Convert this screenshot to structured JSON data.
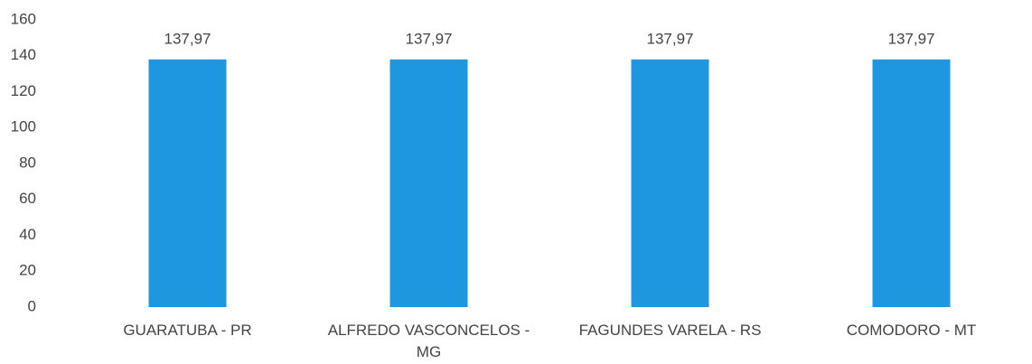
{
  "chart_data": {
    "type": "bar",
    "categories": [
      "GUARATUBA - PR",
      "ALFREDO VASCONCELOS - MG",
      "FAGUNDES VARELA - RS",
      "COMODORO - MT"
    ],
    "values": [
      137.97,
      137.97,
      137.97,
      137.97
    ],
    "value_labels": [
      "137,97",
      "137,97",
      "137,97",
      "137,97"
    ],
    "color": "#1e96e0",
    "ylim": [
      0,
      160
    ],
    "yticks": [
      0,
      20,
      40,
      60,
      80,
      100,
      120,
      140,
      160
    ],
    "grid": false
  }
}
